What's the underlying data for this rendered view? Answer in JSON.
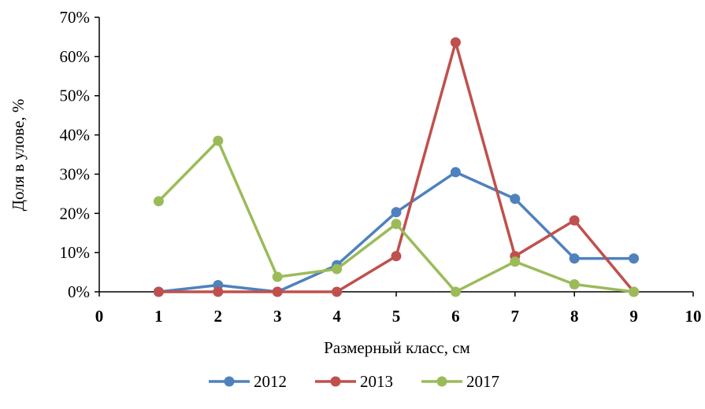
{
  "chart_data": {
    "type": "line",
    "xlabel": "Размерный класс, см",
    "ylabel": "Доля в улове, %",
    "xlim": [
      0,
      10
    ],
    "ylim": [
      0,
      70
    ],
    "x_ticks": [
      "0",
      "1",
      "2",
      "3",
      "4",
      "5",
      "6",
      "7",
      "8",
      "9",
      "10"
    ],
    "y_ticks": [
      "0%",
      "10%",
      "20%",
      "30%",
      "40%",
      "50%",
      "60%",
      "70%"
    ],
    "grid": false,
    "legend_position": "bottom",
    "series": [
      {
        "name": "2012",
        "color": "#4F81BD",
        "x": [
          1,
          2,
          3,
          4,
          5,
          6,
          7,
          8,
          9
        ],
        "y": [
          0,
          1.7,
          0,
          6.8,
          20.3,
          30.5,
          23.7,
          8.5,
          8.5
        ]
      },
      {
        "name": "2013",
        "color": "#C0504D",
        "x": [
          1,
          2,
          3,
          4,
          5,
          6,
          7,
          8,
          9
        ],
        "y": [
          0,
          0,
          0,
          0,
          9.1,
          63.6,
          9.1,
          18.2,
          0
        ]
      },
      {
        "name": "2017",
        "color": "#9BBB59",
        "x": [
          1,
          2,
          3,
          4,
          5,
          6,
          7,
          8,
          9
        ],
        "y": [
          23.1,
          38.5,
          3.8,
          5.8,
          17.3,
          0,
          7.7,
          1.9,
          0
        ]
      }
    ]
  }
}
